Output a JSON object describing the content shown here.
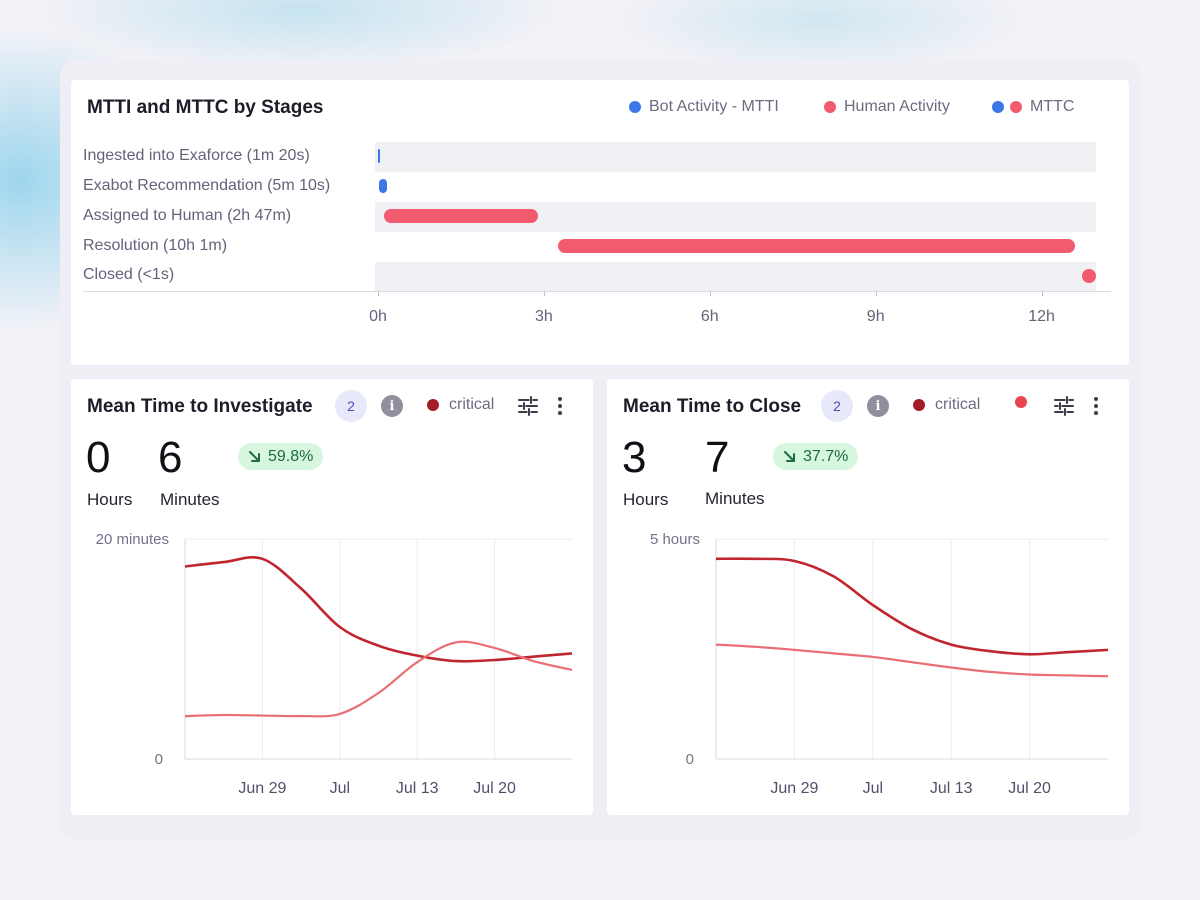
{
  "top_chart": {
    "title": "MTTI and MTTC by Stages",
    "legend": [
      {
        "label": "Bot Activity - MTTI",
        "colors": [
          "#3b78e7"
        ]
      },
      {
        "label": "Human Activity",
        "colors": [
          "#f25b6e"
        ]
      },
      {
        "label": "MTTC",
        "colors": [
          "#3b78e7",
          "#f25b6e"
        ]
      }
    ],
    "stages": [
      {
        "label": "Ingested into Exaforce (1m 20s)",
        "start_h": 0,
        "end_h": 0.02,
        "type": "bot"
      },
      {
        "label": "Exabot Recommendation (5m 10s)",
        "start_h": 0.02,
        "end_h": 0.11,
        "type": "bot"
      },
      {
        "label": "Assigned to Human (2h 47m)",
        "start_h": 0.11,
        "end_h": 2.9,
        "type": "human"
      },
      {
        "label": "Resolution (10h 1m)",
        "start_h": 3.25,
        "end_h": 12.6,
        "type": "human"
      },
      {
        "label": "Closed (<1s)",
        "start_h": 12.85,
        "end_h": 12.85,
        "type": "human"
      }
    ],
    "x_ticks": [
      "0h",
      "3h",
      "6h",
      "9h",
      "12h"
    ]
  },
  "mtti": {
    "title": "Mean Time to Investigate",
    "count": "2",
    "info": "i",
    "severity_label": "critical",
    "hours_value": "0",
    "hours_unit": "Hours",
    "minutes_value": "6",
    "minutes_unit": "Minutes",
    "delta": "59.8%"
  },
  "mttc": {
    "title": "Mean Time to Close",
    "count": "2",
    "info": "i",
    "severity_label": "critical",
    "hours_value": "3",
    "hours_unit": "Hours",
    "minutes_value": "7",
    "minutes_unit": "Minutes",
    "delta": "37.7%"
  },
  "colors": {
    "critical": "#c0262d",
    "high": "#e96e75",
    "bot": "#3b78e7",
    "human": "#f25b6e"
  },
  "chart_data": [
    {
      "type": "line",
      "title": "Mean Time to Investigate",
      "ylabel": "",
      "y_ticks": [
        "20 minutes",
        "0"
      ],
      "ylim": [
        0,
        20
      ],
      "x_ticks": [
        "Jun 29",
        "Jul",
        "Jul 13",
        "Jul 20"
      ],
      "x": [
        "Jun 23",
        "Jun 26",
        "Jun 29",
        "Jul 2",
        "Jul 6",
        "Jul 9",
        "Jul 13",
        "Jul 16",
        "Jul 20",
        "Jul 23",
        "Jul 27"
      ],
      "series": [
        {
          "name": "critical",
          "color": "#c0262d",
          "values": [
            17.5,
            17.9,
            18.2,
            15.5,
            12.0,
            10.3,
            9.4,
            8.9,
            9.0,
            9.3,
            9.6
          ]
        },
        {
          "name": "",
          "color": "#e96e75",
          "values": [
            3.9,
            4.0,
            3.95,
            3.9,
            4.1,
            6.0,
            8.8,
            10.6,
            10.1,
            8.9,
            8.1
          ]
        }
      ]
    },
    {
      "type": "line",
      "title": "Mean Time to Close",
      "ylabel": "",
      "y_ticks": [
        "5 hours",
        "0"
      ],
      "ylim": [
        0,
        5
      ],
      "x_ticks": [
        "Jun 29",
        "Jul",
        "Jul 13",
        "Jul 20"
      ],
      "x": [
        "Jun 23",
        "Jun 26",
        "Jun 29",
        "Jul 2",
        "Jul 6",
        "Jul 9",
        "Jul 13",
        "Jul 16",
        "Jul 20",
        "Jul 23",
        "Jul 27"
      ],
      "series": [
        {
          "name": "critical",
          "color": "#c0262d",
          "values": [
            4.55,
            4.55,
            4.5,
            4.15,
            3.5,
            2.95,
            2.6,
            2.45,
            2.38,
            2.43,
            2.48
          ]
        },
        {
          "name": "",
          "color": "#e96e75",
          "values": [
            2.6,
            2.55,
            2.48,
            2.4,
            2.32,
            2.2,
            2.08,
            1.98,
            1.92,
            1.9,
            1.88
          ]
        }
      ]
    }
  ]
}
